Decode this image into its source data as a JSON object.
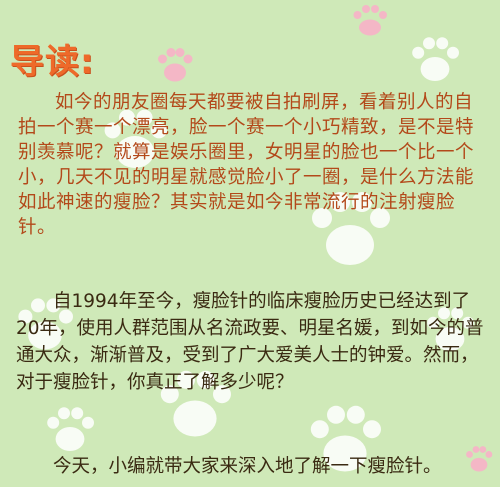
{
  "header": {
    "title": "导读:"
  },
  "intro": {
    "paragraph1": "如今的朋友圈每天都要被自拍刷屏，看着别人的自拍一个赛一个漂亮，脸一个赛一个小巧精致，是不是特别羡慕呢？就算是娱乐圈里，女明星的脸也一个比一个小，几天不见的明星就感觉脸小了一圈，是什么方法能如此神速的瘦脸？其实就是如今非常流行的注射瘦脸针。",
    "paragraph2": "自1994年至今，瘦脸针的临床瘦脸历史已经达到了20年，使用人群范围从名流政要、明星名媛，到如今的普通大众，渐渐普及，受到了广大爱美人士的钟爱。然而，对于瘦脸针，你真正了解多少呢？",
    "paragraph3": "今天，小编就带大家来深入地了解一下瘦脸针。"
  },
  "colors": {
    "background": "#cfe9b8",
    "title": "#ee6a2a",
    "paragraph1_text": "#b3491a",
    "body_text": "#3a2a12",
    "paw_pad": "#ffffff",
    "paw_pink": "#f4b7c6"
  },
  "decor": {
    "icon": "paw-print-icon"
  }
}
